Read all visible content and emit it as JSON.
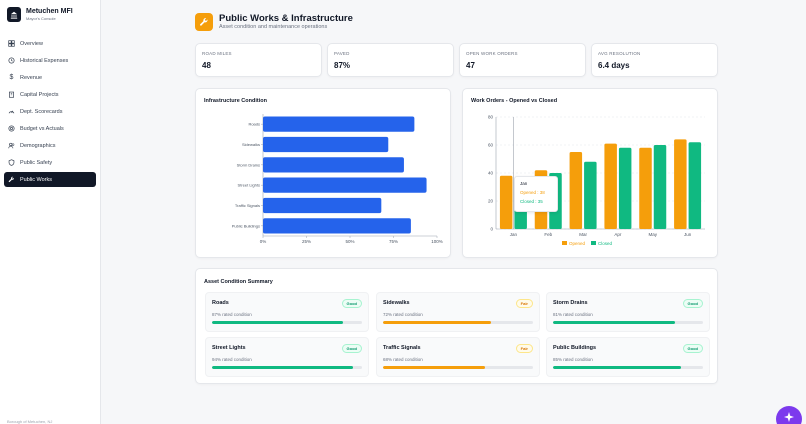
{
  "sidebar": {
    "brand_name": "Metuchen MFI",
    "brand_sub": "Mayor's Console",
    "items": [
      {
        "label": "Overview",
        "icon": "grid-icon",
        "active": false
      },
      {
        "label": "Historical Expenses",
        "icon": "history-icon",
        "active": false
      },
      {
        "label": "Revenue",
        "icon": "dollar-icon",
        "active": false
      },
      {
        "label": "Capital Projects",
        "icon": "building-icon",
        "active": false
      },
      {
        "label": "Dept. Scorecards",
        "icon": "gauge-icon",
        "active": false
      },
      {
        "label": "Budget vs Actuals",
        "icon": "target-icon",
        "active": false
      },
      {
        "label": "Demographics",
        "icon": "users-icon",
        "active": false
      },
      {
        "label": "Public Safety",
        "icon": "shield-icon",
        "active": false
      },
      {
        "label": "Public Works",
        "icon": "wrench-icon",
        "active": true
      }
    ],
    "footer": "Borough of Metuchen, NJ"
  },
  "header": {
    "title": "Public Works & Infrastructure",
    "subtitle": "Asset condition and maintenance operations",
    "icon": "wrench-icon",
    "accent": "#f59e0b"
  },
  "kpis": [
    {
      "label": "ROAD MILES",
      "value": "48"
    },
    {
      "label": "PAVED",
      "value": "87%"
    },
    {
      "label": "OPEN WORK ORDERS",
      "value": "47"
    },
    {
      "label": "AVG RESOLUTION",
      "value": "6.4 days"
    }
  ],
  "chart_data": [
    {
      "type": "bar",
      "orientation": "horizontal",
      "title": "Infrastructure Condition",
      "categories": [
        "Roads",
        "Sidewalks",
        "Storm Drains",
        "Street Lights",
        "Traffic Signals",
        "Public Buildings"
      ],
      "values": [
        87,
        72,
        81,
        94,
        68,
        85
      ],
      "xticks": [
        "0%",
        "25%",
        "50%",
        "75%",
        "100%"
      ],
      "xlim": [
        0,
        100
      ],
      "color": "#2563eb"
    },
    {
      "type": "bar",
      "title": "Work Orders - Opened vs Closed",
      "categories": [
        "Jan",
        "Feb",
        "Mar",
        "Apr",
        "May",
        "Jun"
      ],
      "series": [
        {
          "name": "Opened",
          "values": [
            38,
            42,
            55,
            61,
            58,
            64
          ],
          "color": "#f59e0b"
        },
        {
          "name": "Closed",
          "values": [
            35,
            40,
            48,
            58,
            60,
            62
          ],
          "color": "#10b981"
        }
      ],
      "yticks": [
        "0",
        "20",
        "40",
        "60",
        "80"
      ],
      "ylim": [
        0,
        80
      ],
      "legend": "bottom",
      "tooltip": {
        "category": "Jan",
        "lines": [
          "Opened : 38",
          "Closed : 35"
        ]
      }
    }
  ],
  "summary": {
    "title": "Asset Condition Summary",
    "items": [
      {
        "name": "Roads",
        "status": "Good",
        "condition": "87% rated condition",
        "value": 87
      },
      {
        "name": "Sidewalks",
        "status": "Fair",
        "condition": "72% rated condition",
        "value": 72
      },
      {
        "name": "Storm Drains",
        "status": "Good",
        "condition": "81% rated condition",
        "value": 81
      },
      {
        "name": "Street Lights",
        "status": "Good",
        "condition": "94% rated condition",
        "value": 94
      },
      {
        "name": "Traffic Signals",
        "status": "Fair",
        "condition": "68% rated condition",
        "value": 68
      },
      {
        "name": "Public Buildings",
        "status": "Good",
        "condition": "85% rated condition",
        "value": 85
      }
    ],
    "good_color": "#10b981",
    "fair_color": "#f59e0b"
  },
  "fab": {
    "icon": "sparkle-icon"
  }
}
